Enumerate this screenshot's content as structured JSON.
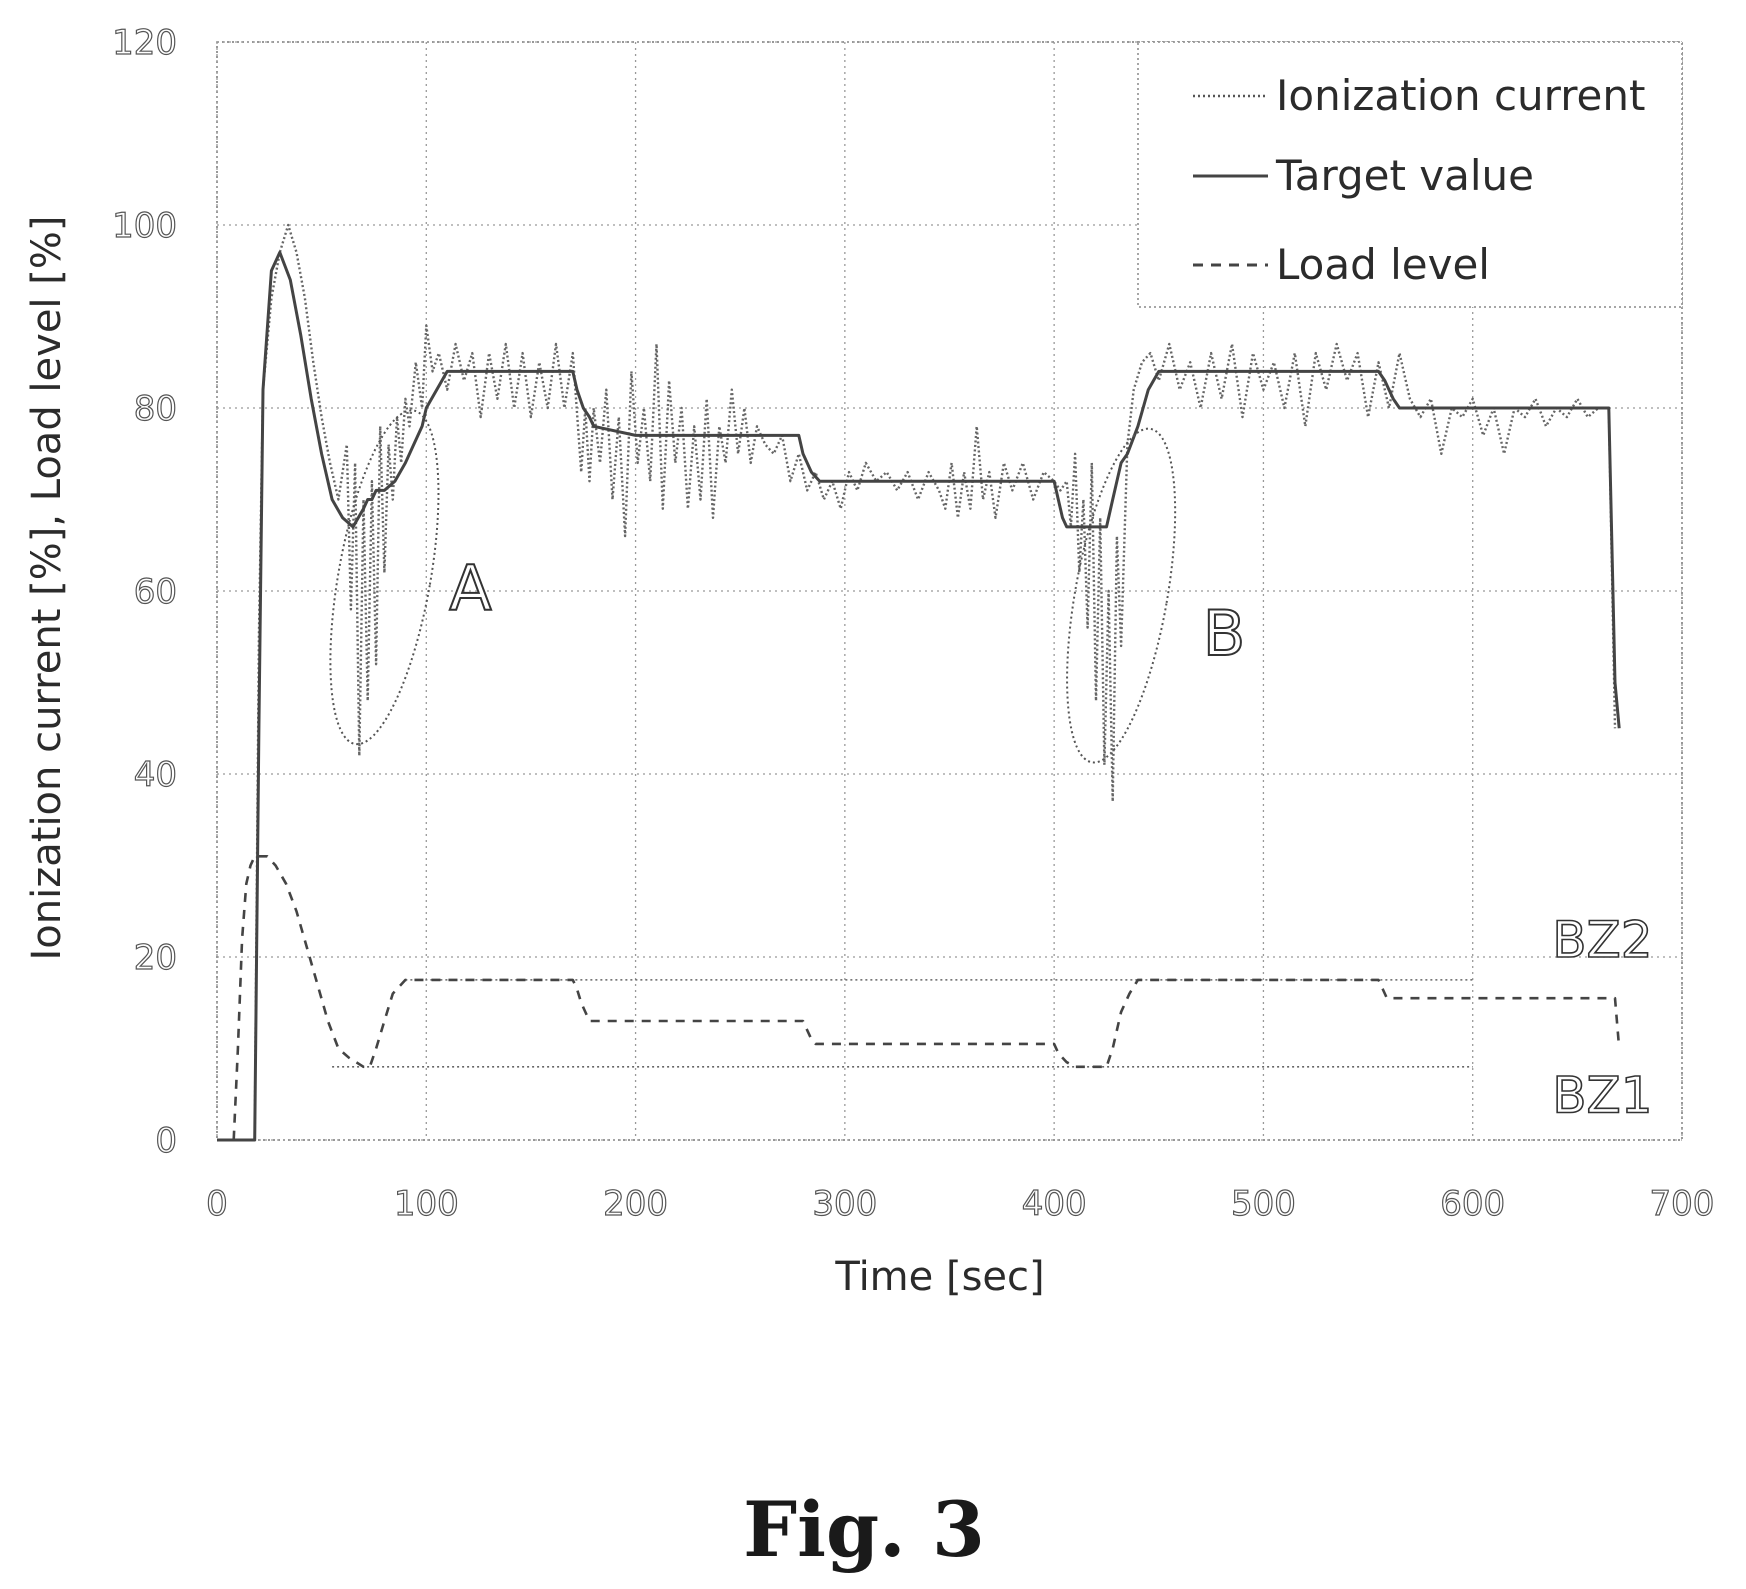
{
  "chart_data": {
    "type": "line",
    "xlabel": "Time [sec]",
    "ylabel": "Ionization current [%], Load level [%]",
    "xlim": [
      0,
      700
    ],
    "ylim": [
      0,
      120
    ],
    "x_ticks": [
      0,
      100,
      200,
      300,
      400,
      500,
      600,
      700
    ],
    "y_ticks": [
      0,
      20,
      40,
      60,
      80,
      100,
      120
    ],
    "grid": true,
    "legend_position": "top-right",
    "series": [
      {
        "name": "Ionization current",
        "style": "dotted",
        "x": [
          0,
          18,
          20,
          22,
          26,
          30,
          34,
          38,
          42,
          46,
          50,
          54,
          58,
          62,
          64,
          66,
          68,
          70,
          72,
          74,
          76,
          78,
          80,
          82,
          84,
          86,
          88,
          90,
          92,
          95,
          98,
          100,
          103,
          106,
          110,
          114,
          118,
          122,
          126,
          130,
          134,
          138,
          142,
          146,
          150,
          154,
          158,
          162,
          166,
          170,
          174,
          176,
          178,
          180,
          183,
          186,
          189,
          192,
          195,
          198,
          201,
          204,
          207,
          210,
          213,
          216,
          219,
          222,
          225,
          228,
          231,
          234,
          237,
          240,
          243,
          246,
          249,
          252,
          255,
          258,
          262,
          266,
          270,
          274,
          278,
          282,
          286,
          290,
          294,
          298,
          302,
          306,
          310,
          315,
          320,
          325,
          330,
          335,
          340,
          345,
          348,
          351,
          354,
          357,
          360,
          363,
          366,
          369,
          372,
          376,
          380,
          385,
          390,
          395,
          400,
          403,
          406,
          408,
          410,
          412,
          414,
          416,
          418,
          420,
          422,
          424,
          426,
          428,
          430,
          432,
          435,
          438,
          442,
          446,
          450,
          455,
          460,
          465,
          470,
          475,
          480,
          485,
          490,
          495,
          500,
          505,
          510,
          515,
          520,
          525,
          530,
          535,
          540,
          545,
          550,
          555,
          560,
          565,
          570,
          575,
          580,
          585,
          590,
          595,
          600,
          605,
          610,
          615,
          620,
          625,
          630,
          635,
          640,
          645,
          650,
          655,
          660,
          665,
          668
        ],
        "values": [
          0,
          0,
          55,
          82,
          92,
          97,
          100,
          97,
          92,
          85,
          79,
          74,
          70,
          76,
          58,
          74,
          42,
          70,
          48,
          72,
          52,
          78,
          62,
          76,
          70,
          79,
          74,
          81,
          78,
          85,
          80,
          89,
          84,
          86,
          82,
          87,
          83,
          86,
          79,
          86,
          81,
          87,
          80,
          86,
          79,
          85,
          80,
          87,
          80,
          86,
          73,
          80,
          72,
          80,
          74,
          82,
          70,
          79,
          66,
          84,
          74,
          80,
          72,
          87,
          69,
          83,
          74,
          80,
          69,
          78,
          70,
          81,
          68,
          78,
          74,
          82,
          75,
          80,
          74,
          78,
          76,
          75,
          77,
          72,
          75,
          71,
          73,
          70,
          72,
          69,
          73,
          71,
          74,
          72,
          73,
          71,
          73,
          70,
          73,
          71,
          69,
          74,
          68,
          73,
          69,
          78,
          70,
          73,
          68,
          74,
          71,
          74,
          70,
          73,
          72,
          71,
          72,
          67,
          75,
          62,
          70,
          56,
          74,
          48,
          68,
          41,
          60,
          37,
          66,
          54,
          76,
          82,
          85,
          86,
          83,
          87,
          82,
          85,
          80,
          86,
          81,
          87,
          79,
          86,
          82,
          85,
          80,
          86,
          78,
          86,
          82,
          87,
          83,
          86,
          79,
          85,
          80,
          86,
          81,
          79,
          81,
          75,
          80,
          79,
          81,
          77,
          80,
          75,
          80,
          79,
          81,
          78,
          80,
          79,
          81,
          79,
          80,
          80,
          45
        ]
      },
      {
        "name": "Target value",
        "style": "solid",
        "x": [
          0,
          18,
          20,
          22,
          26,
          30,
          35,
          40,
          45,
          50,
          55,
          60,
          65,
          70,
          72,
          74,
          76,
          80,
          85,
          90,
          94,
          98,
          100,
          110,
          130,
          150,
          170,
          172,
          175,
          178,
          180,
          200,
          220,
          240,
          260,
          278,
          280,
          284,
          288,
          290,
          320,
          350,
          380,
          400,
          402,
          404,
          406,
          410,
          420,
          425,
          428,
          430,
          432,
          435,
          440,
          445,
          450,
          470,
          500,
          530,
          555,
          558,
          560,
          562,
          565,
          590,
          620,
          650,
          665,
          668,
          670
        ],
        "values": [
          0,
          0,
          45,
          82,
          95,
          97,
          94,
          88,
          81,
          75,
          70,
          68,
          67,
          69,
          70,
          70,
          71,
          71,
          72,
          74,
          76,
          78,
          80,
          84,
          84,
          84,
          84,
          82,
          80,
          79,
          78,
          77,
          77,
          77,
          77,
          77,
          75,
          73,
          72,
          72,
          72,
          72,
          72,
          72,
          70,
          68,
          67,
          67,
          67,
          67,
          70,
          72,
          74,
          75,
          78,
          82,
          84,
          84,
          84,
          84,
          84,
          83,
          82,
          81,
          80,
          80,
          80,
          80,
          80,
          50,
          45
        ]
      },
      {
        "name": "Load level",
        "style": "dashed",
        "x": [
          0,
          8,
          10,
          12,
          14,
          16,
          18,
          20,
          24,
          28,
          33,
          38,
          43,
          48,
          53,
          58,
          63,
          70,
          73,
          76,
          80,
          84,
          88,
          90,
          130,
          170,
          172,
          174,
          176,
          178,
          180,
          200,
          220,
          240,
          260,
          280,
          282,
          284,
          286,
          290,
          320,
          350,
          380,
          400,
          402,
          404,
          406,
          410,
          420,
          425,
          428,
          430,
          432,
          436,
          440,
          480,
          520,
          555,
          557,
          559,
          562,
          600,
          640,
          668,
          670
        ],
        "values": [
          0,
          0,
          10,
          22,
          28,
          30,
          31,
          31,
          31,
          30,
          28,
          25,
          21,
          17,
          13,
          10,
          9,
          8,
          8,
          10,
          13,
          16,
          17,
          17.5,
          17.5,
          17.5,
          16.5,
          15,
          14,
          13,
          13,
          13,
          13,
          13,
          13,
          13,
          12,
          11,
          10.5,
          10.5,
          10.5,
          10.5,
          10.5,
          10.5,
          9.5,
          9,
          8.5,
          8,
          8,
          8,
          10,
          12,
          14,
          16,
          17.5,
          17.5,
          17.5,
          17.5,
          16.5,
          15.5,
          15.5,
          15.5,
          15.5,
          15.5,
          10
        ]
      }
    ],
    "zone_lines": [
      {
        "name": "BZ2",
        "value": 17.5,
        "x_start": 90,
        "x_end": 600
      },
      {
        "name": "BZ1",
        "value": 8,
        "x_start": 55,
        "x_end": 600
      }
    ],
    "annotations": [
      {
        "text": "A",
        "x": 111,
        "y": 58
      },
      {
        "text": "B",
        "x": 471,
        "y": 53
      },
      {
        "text": "BZ2",
        "x": 638,
        "y": 20
      },
      {
        "text": "BZ1",
        "x": 638,
        "y": 3
      }
    ],
    "ellipses": [
      {
        "label": "A",
        "cx": 80,
        "cy": 61.5,
        "rx": 22,
        "ry": 18.5
      },
      {
        "label": "B",
        "cx": 432,
        "cy": 59.5,
        "rx": 22,
        "ry": 18.5
      }
    ]
  },
  "legend": {
    "items": [
      "Ionization current",
      "Target value",
      "Load level"
    ]
  },
  "figure_caption": "Fig. 3"
}
